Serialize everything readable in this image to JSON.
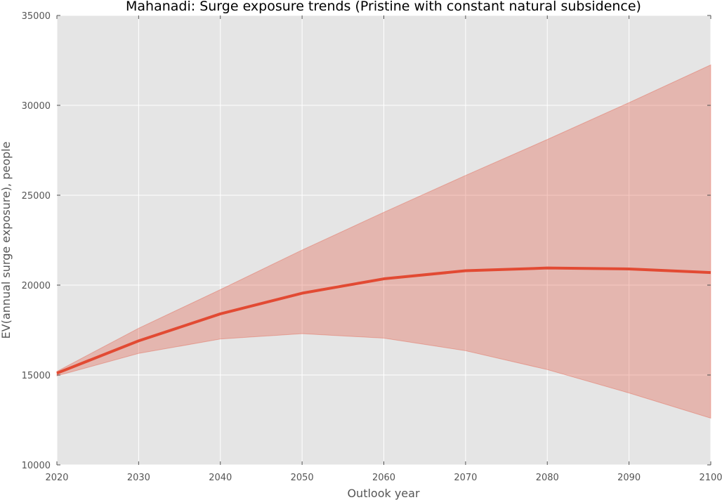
{
  "chart_data": {
    "type": "line",
    "title": "Mahanadi: Surge exposure trends (Pristine with constant natural subsidence)",
    "xlabel": "Outlook year",
    "ylabel": "EV(annual surge exposure), people",
    "xlim": [
      2020,
      2100
    ],
    "ylim": [
      10000,
      35000
    ],
    "xticks": [
      2020,
      2030,
      2040,
      2050,
      2060,
      2070,
      2080,
      2090,
      2100
    ],
    "yticks": [
      10000,
      15000,
      20000,
      25000,
      30000,
      35000
    ],
    "x": [
      2020,
      2030,
      2040,
      2050,
      2060,
      2070,
      2080,
      2090,
      2100
    ],
    "series": [
      {
        "values": [
          15100,
          16900,
          18400,
          19550,
          20350,
          20800,
          20950,
          20900,
          20700
        ],
        "band_upper": [
          15200,
          17600,
          19750,
          21950,
          24050,
          26100,
          28100,
          30150,
          32250
        ],
        "band_lower": [
          14950,
          16200,
          17000,
          17300,
          17050,
          16350,
          15300,
          14000,
          12600
        ],
        "color": "#e24a33",
        "band_color": "#e24a33"
      }
    ],
    "grid": true,
    "background": "#e5e5e5"
  }
}
